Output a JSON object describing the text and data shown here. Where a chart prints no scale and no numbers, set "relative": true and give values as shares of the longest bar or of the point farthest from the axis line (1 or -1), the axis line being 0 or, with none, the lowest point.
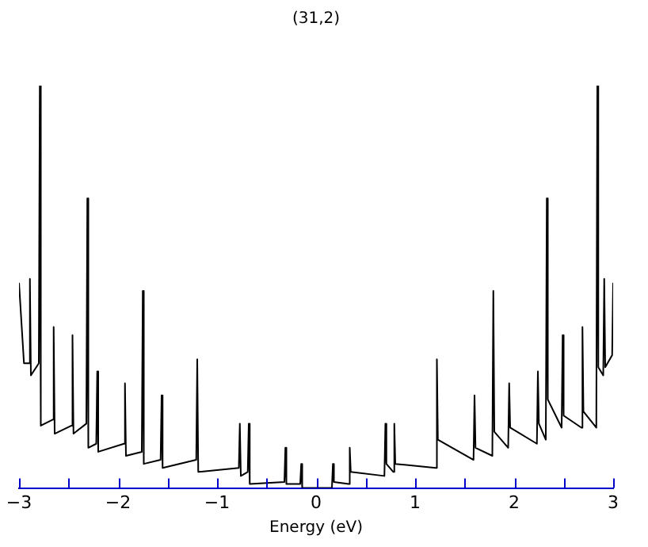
{
  "chart_data": {
    "type": "line",
    "title": "(31,2)",
    "xlabel": "Energy (eV)",
    "relative": true,
    "grid": false,
    "legend": false,
    "marker": "none",
    "line_style": "solid",
    "xlim": [
      -3,
      3
    ],
    "xticks": [
      -3,
      {
        "value": -2.5,
        "label": null
      },
      -2,
      {
        "value": -1.5,
        "label": null
      },
      -1,
      {
        "value": -0.5,
        "label": null
      },
      0,
      {
        "value": 0.5,
        "label": null
      },
      1,
      {
        "value": 1.5,
        "label": null
      },
      2,
      {
        "value": 2.5,
        "label": null
      },
      3
    ],
    "series": [
      {
        "color": "#000000",
        "x": [
          -3.0,
          -2.95,
          -2.9,
          -2.89,
          -2.88,
          -2.8,
          -2.79,
          -2.78,
          -2.66,
          -2.65,
          -2.64,
          -2.47,
          -2.46,
          -2.45,
          -2.32,
          -2.31,
          -2.3,
          -2.22,
          -2.21,
          -2.2,
          -1.94,
          -1.93,
          -1.92,
          -1.76,
          -1.75,
          -1.74,
          -1.57,
          -1.56,
          -1.55,
          -1.21,
          -1.2,
          -1.19,
          -0.78,
          -0.77,
          -0.76,
          -0.69,
          -0.68,
          -0.67,
          -0.32,
          -0.31,
          -0.3,
          -0.16,
          -0.15,
          -0.14,
          0.14,
          0.16,
          0.17,
          0.18,
          0.33,
          0.34,
          0.35,
          0.69,
          0.7,
          0.71,
          0.78,
          0.79,
          0.8,
          1.21,
          1.22,
          1.23,
          1.59,
          1.6,
          1.61,
          1.78,
          1.79,
          1.8,
          1.94,
          1.95,
          1.96,
          2.23,
          2.24,
          2.25,
          2.32,
          2.33,
          2.34,
          2.48,
          2.49,
          2.5,
          2.68,
          2.69,
          2.7,
          2.83,
          2.84,
          2.85,
          2.9,
          2.91,
          2.92,
          2.99,
          3.0
        ],
        "values": [
          0.51,
          0.31,
          0.31,
          0.52,
          0.28,
          0.31,
          1.0,
          0.155,
          0.17,
          0.4,
          0.135,
          0.155,
          0.38,
          0.135,
          0.16,
          0.72,
          0.1,
          0.11,
          0.29,
          0.09,
          0.11,
          0.26,
          0.08,
          0.09,
          0.49,
          0.06,
          0.07,
          0.23,
          0.05,
          0.07,
          0.32,
          0.04,
          0.05,
          0.16,
          0.03,
          0.04,
          0.16,
          0.01,
          0.015,
          0.1,
          0.01,
          0.01,
          0.06,
          0.0,
          0.0,
          0.0,
          0.06,
          0.015,
          0.01,
          0.1,
          0.04,
          0.03,
          0.16,
          0.06,
          0.04,
          0.16,
          0.06,
          0.05,
          0.32,
          0.12,
          0.07,
          0.23,
          0.1,
          0.08,
          0.49,
          0.14,
          0.1,
          0.26,
          0.15,
          0.11,
          0.29,
          0.16,
          0.12,
          0.72,
          0.22,
          0.15,
          0.38,
          0.18,
          0.15,
          0.4,
          0.19,
          0.15,
          1.0,
          0.3,
          0.28,
          0.52,
          0.3,
          0.33,
          0.51
        ]
      }
    ]
  }
}
